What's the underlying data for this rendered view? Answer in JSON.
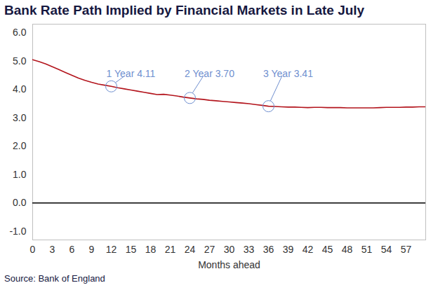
{
  "chart_data": {
    "type": "line",
    "title": "Bank Rate Path Implied by Financial Markets in Late July",
    "x_label": "Months ahead",
    "source": "Source: Bank of England",
    "x": [
      0,
      1,
      2,
      3,
      4,
      5,
      6,
      7,
      8,
      9,
      10,
      11,
      12,
      13,
      14,
      15,
      16,
      17,
      18,
      19,
      20,
      21,
      22,
      23,
      24,
      25,
      26,
      27,
      28,
      29,
      30,
      31,
      32,
      33,
      34,
      35,
      36,
      37,
      38,
      39,
      40,
      41,
      42,
      43,
      44,
      45,
      46,
      47,
      48,
      49,
      50,
      51,
      52,
      53,
      54,
      55,
      56,
      57,
      58,
      59,
      60
    ],
    "values": [
      5.05,
      4.98,
      4.9,
      4.8,
      4.7,
      4.6,
      4.5,
      4.4,
      4.32,
      4.25,
      4.19,
      4.15,
      4.11,
      4.06,
      4.02,
      3.98,
      3.94,
      3.9,
      3.86,
      3.82,
      3.83,
      3.8,
      3.77,
      3.73,
      3.7,
      3.67,
      3.65,
      3.62,
      3.6,
      3.58,
      3.56,
      3.54,
      3.52,
      3.5,
      3.47,
      3.44,
      3.41,
      3.4,
      3.39,
      3.38,
      3.38,
      3.37,
      3.36,
      3.37,
      3.37,
      3.36,
      3.36,
      3.36,
      3.35,
      3.35,
      3.35,
      3.35,
      3.35,
      3.36,
      3.37,
      3.37,
      3.37,
      3.38,
      3.38,
      3.39,
      3.39
    ],
    "color": "#b3141c",
    "xlim": [
      0,
      60
    ],
    "xticks": [
      0,
      3,
      6,
      9,
      12,
      15,
      18,
      21,
      24,
      27,
      30,
      33,
      36,
      39,
      42,
      45,
      48,
      51,
      54,
      57
    ],
    "ylim": [
      -1.3,
      6.3
    ],
    "yticks": [
      {
        "value": -1,
        "label": "-1.0"
      },
      {
        "value": 0,
        "label": "0.0"
      },
      {
        "value": 1,
        "label": "1.0"
      },
      {
        "value": 2,
        "label": "2.0"
      },
      {
        "value": 3,
        "label": "3.0"
      },
      {
        "value": 4,
        "label": "4.0"
      },
      {
        "value": 5,
        "label": "5.0"
      },
      {
        "value": 6,
        "label": "6.0"
      }
    ],
    "grid": false,
    "annotations": [
      {
        "x": 12,
        "y": 4.11,
        "label": "1 Year 4.11"
      },
      {
        "x": 24,
        "y": 3.7,
        "label": "2 Year 3.70"
      },
      {
        "x": 36,
        "y": 3.41,
        "label": "3 Year 3.41"
      }
    ]
  }
}
